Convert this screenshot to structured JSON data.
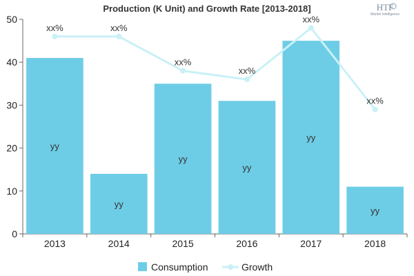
{
  "chart_data": {
    "type": "bar",
    "title": "Production (K Unit) and Growth Rate [2013-2018]",
    "categories": [
      "2013",
      "2014",
      "2015",
      "2016",
      "2017",
      "2018"
    ],
    "ylim": [
      0,
      50
    ],
    "yticks": [
      0,
      10,
      20,
      30,
      40,
      50
    ],
    "grid": false,
    "legend_position": "bottom",
    "series": [
      {
        "name": "Consumption",
        "type": "bar",
        "color": "#6ecde6",
        "values": [
          41,
          14,
          35,
          31,
          45,
          11
        ],
        "data_labels": [
          "yy",
          "yy",
          "yy",
          "yy",
          "yy",
          "yy"
        ]
      },
      {
        "name": "Growth",
        "type": "line",
        "color": "#c9f1f6",
        "values": [
          46,
          46,
          38,
          36,
          48,
          29
        ],
        "data_labels": [
          "xx%",
          "xx%",
          "xx%",
          "xx%",
          "xx%",
          "xx%"
        ]
      }
    ]
  },
  "logo": {
    "text": "HTF",
    "subtext": "Market Intelligence"
  }
}
